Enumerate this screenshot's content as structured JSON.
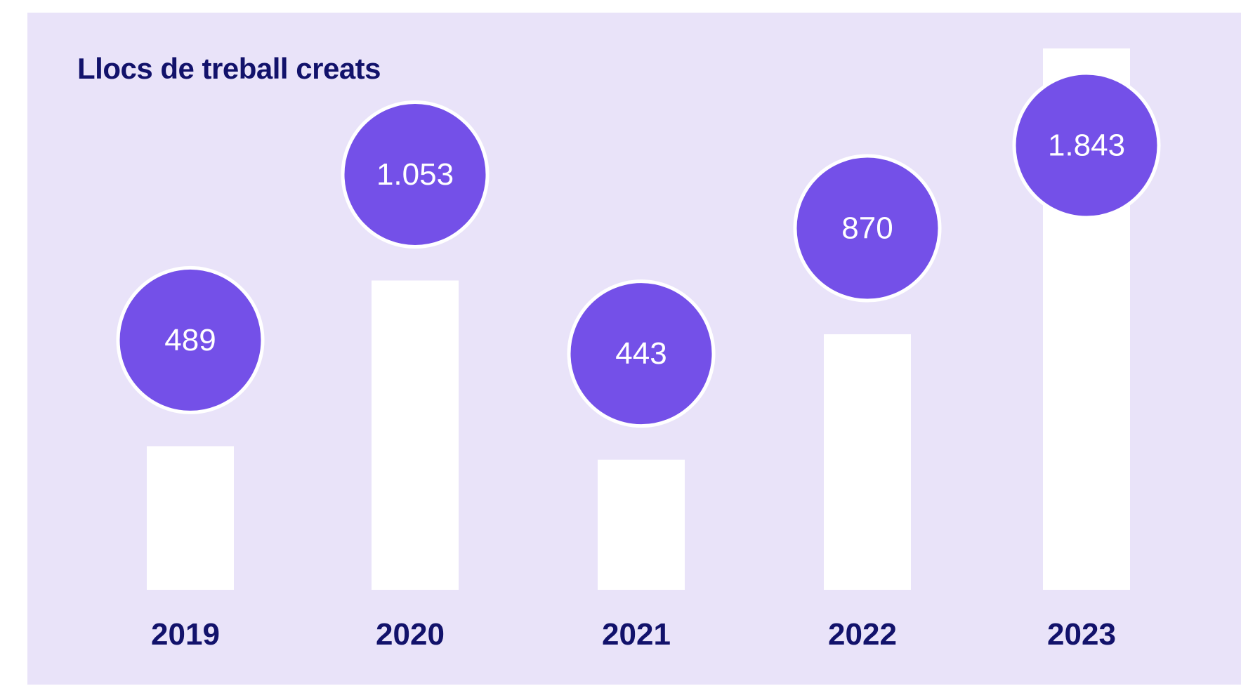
{
  "chart_data": {
    "type": "bar",
    "title": "Llocs de treball creats",
    "categories": [
      "2019",
      "2020",
      "2021",
      "2022",
      "2023"
    ],
    "values": [
      489,
      1053,
      443,
      870,
      1843
    ],
    "data_labels": [
      "489",
      "1.053",
      "443",
      "870",
      "1.843"
    ],
    "xlabel": "",
    "ylabel": "",
    "ylim": [
      0,
      1843
    ],
    "grid": false,
    "legend": "none",
    "colors": {
      "background": "#e9e3f9",
      "bar": "#ffffff",
      "bubble": "#7450e8",
      "bubble_text": "#ffffff",
      "text": "#12126b"
    }
  }
}
